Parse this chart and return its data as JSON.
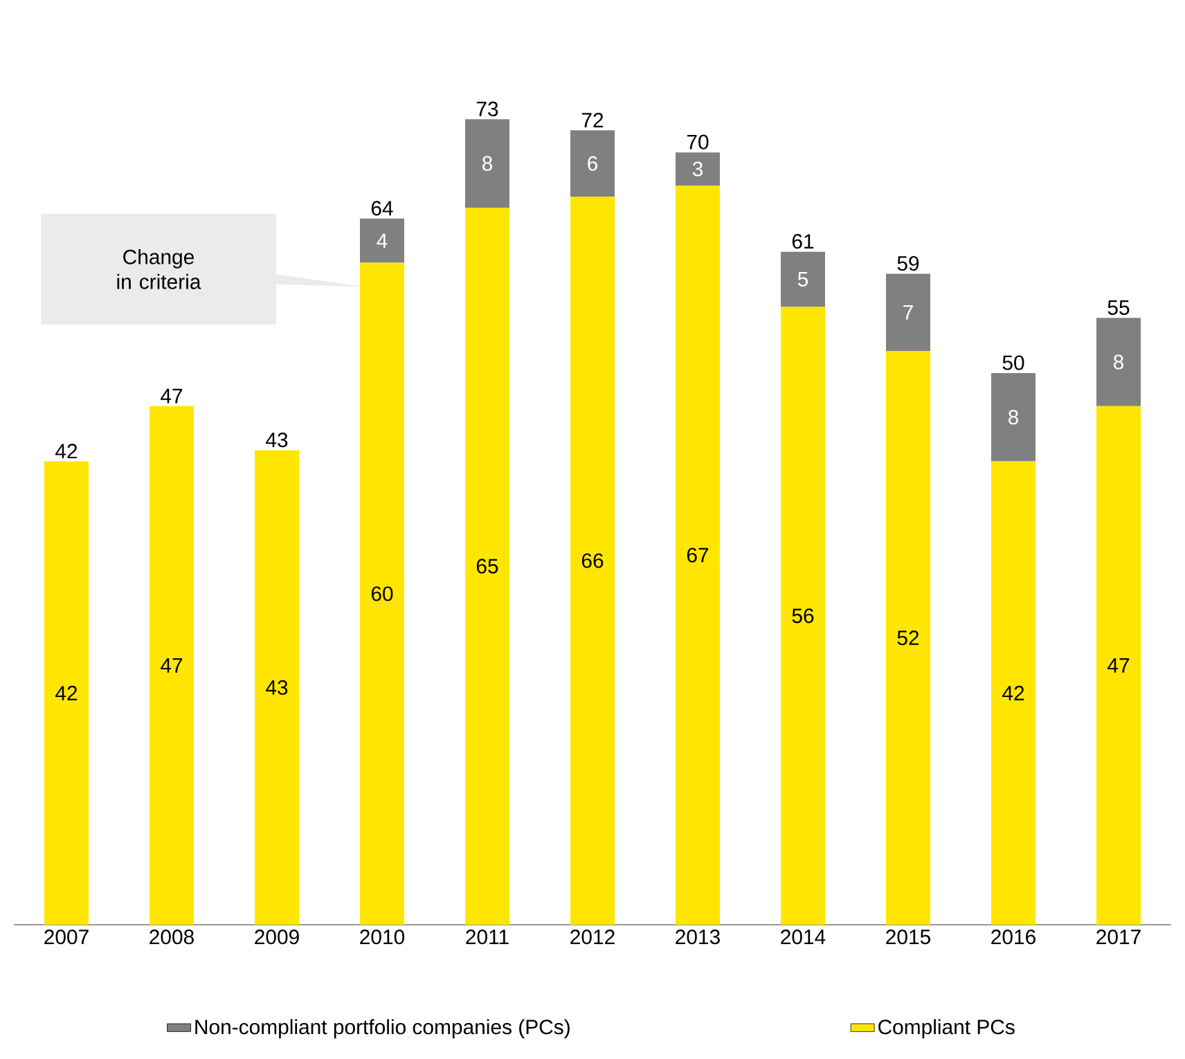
{
  "chart_data": {
    "type": "bar",
    "stacked": true,
    "categories": [
      "2007",
      "2008",
      "2009",
      "2010",
      "2011",
      "2012",
      "2013",
      "2014",
      "2015",
      "2016",
      "2017"
    ],
    "series": [
      {
        "name": "Compliant PCs",
        "color": "#ffe600",
        "values": [
          42,
          47,
          43,
          60,
          65,
          66,
          67,
          56,
          52,
          42,
          47
        ]
      },
      {
        "name": "Non-compliant portfolio companies (PCs)",
        "color": "#808080",
        "values": [
          null,
          null,
          null,
          4,
          8,
          6,
          3,
          5,
          7,
          8,
          8
        ]
      }
    ],
    "data_labels": true,
    "totals": [
      "42",
      "47",
      "43",
      "64",
      "73",
      "72",
      "70",
      "61",
      "59",
      "50",
      "55"
    ],
    "annotations": [
      "Change in criteria"
    ],
    "legend": "bottom"
  }
}
